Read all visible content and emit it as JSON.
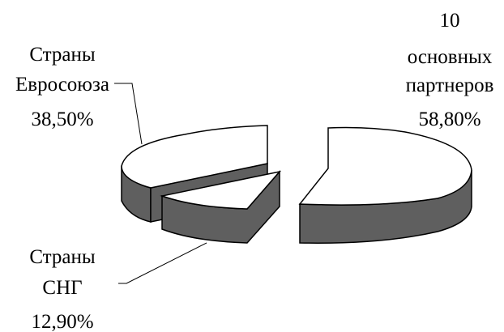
{
  "chart_data": {
    "type": "pie",
    "style": "3d-exploded",
    "title": "",
    "slices": [
      {
        "label_lines": [
          "10",
          "основных",
          "партнеров",
          "58,80%"
        ],
        "value": 58.8
      },
      {
        "label_lines": [
          "Страны",
          "Евросоюза",
          "38,50%"
        ],
        "value": 38.5
      },
      {
        "label_lines": [
          "Страны",
          "СНГ",
          "12,90%"
        ],
        "value": 12.9
      }
    ],
    "colors": {
      "top": "#ffffff",
      "side": "#5f5f5f",
      "outline": "#000000"
    }
  }
}
